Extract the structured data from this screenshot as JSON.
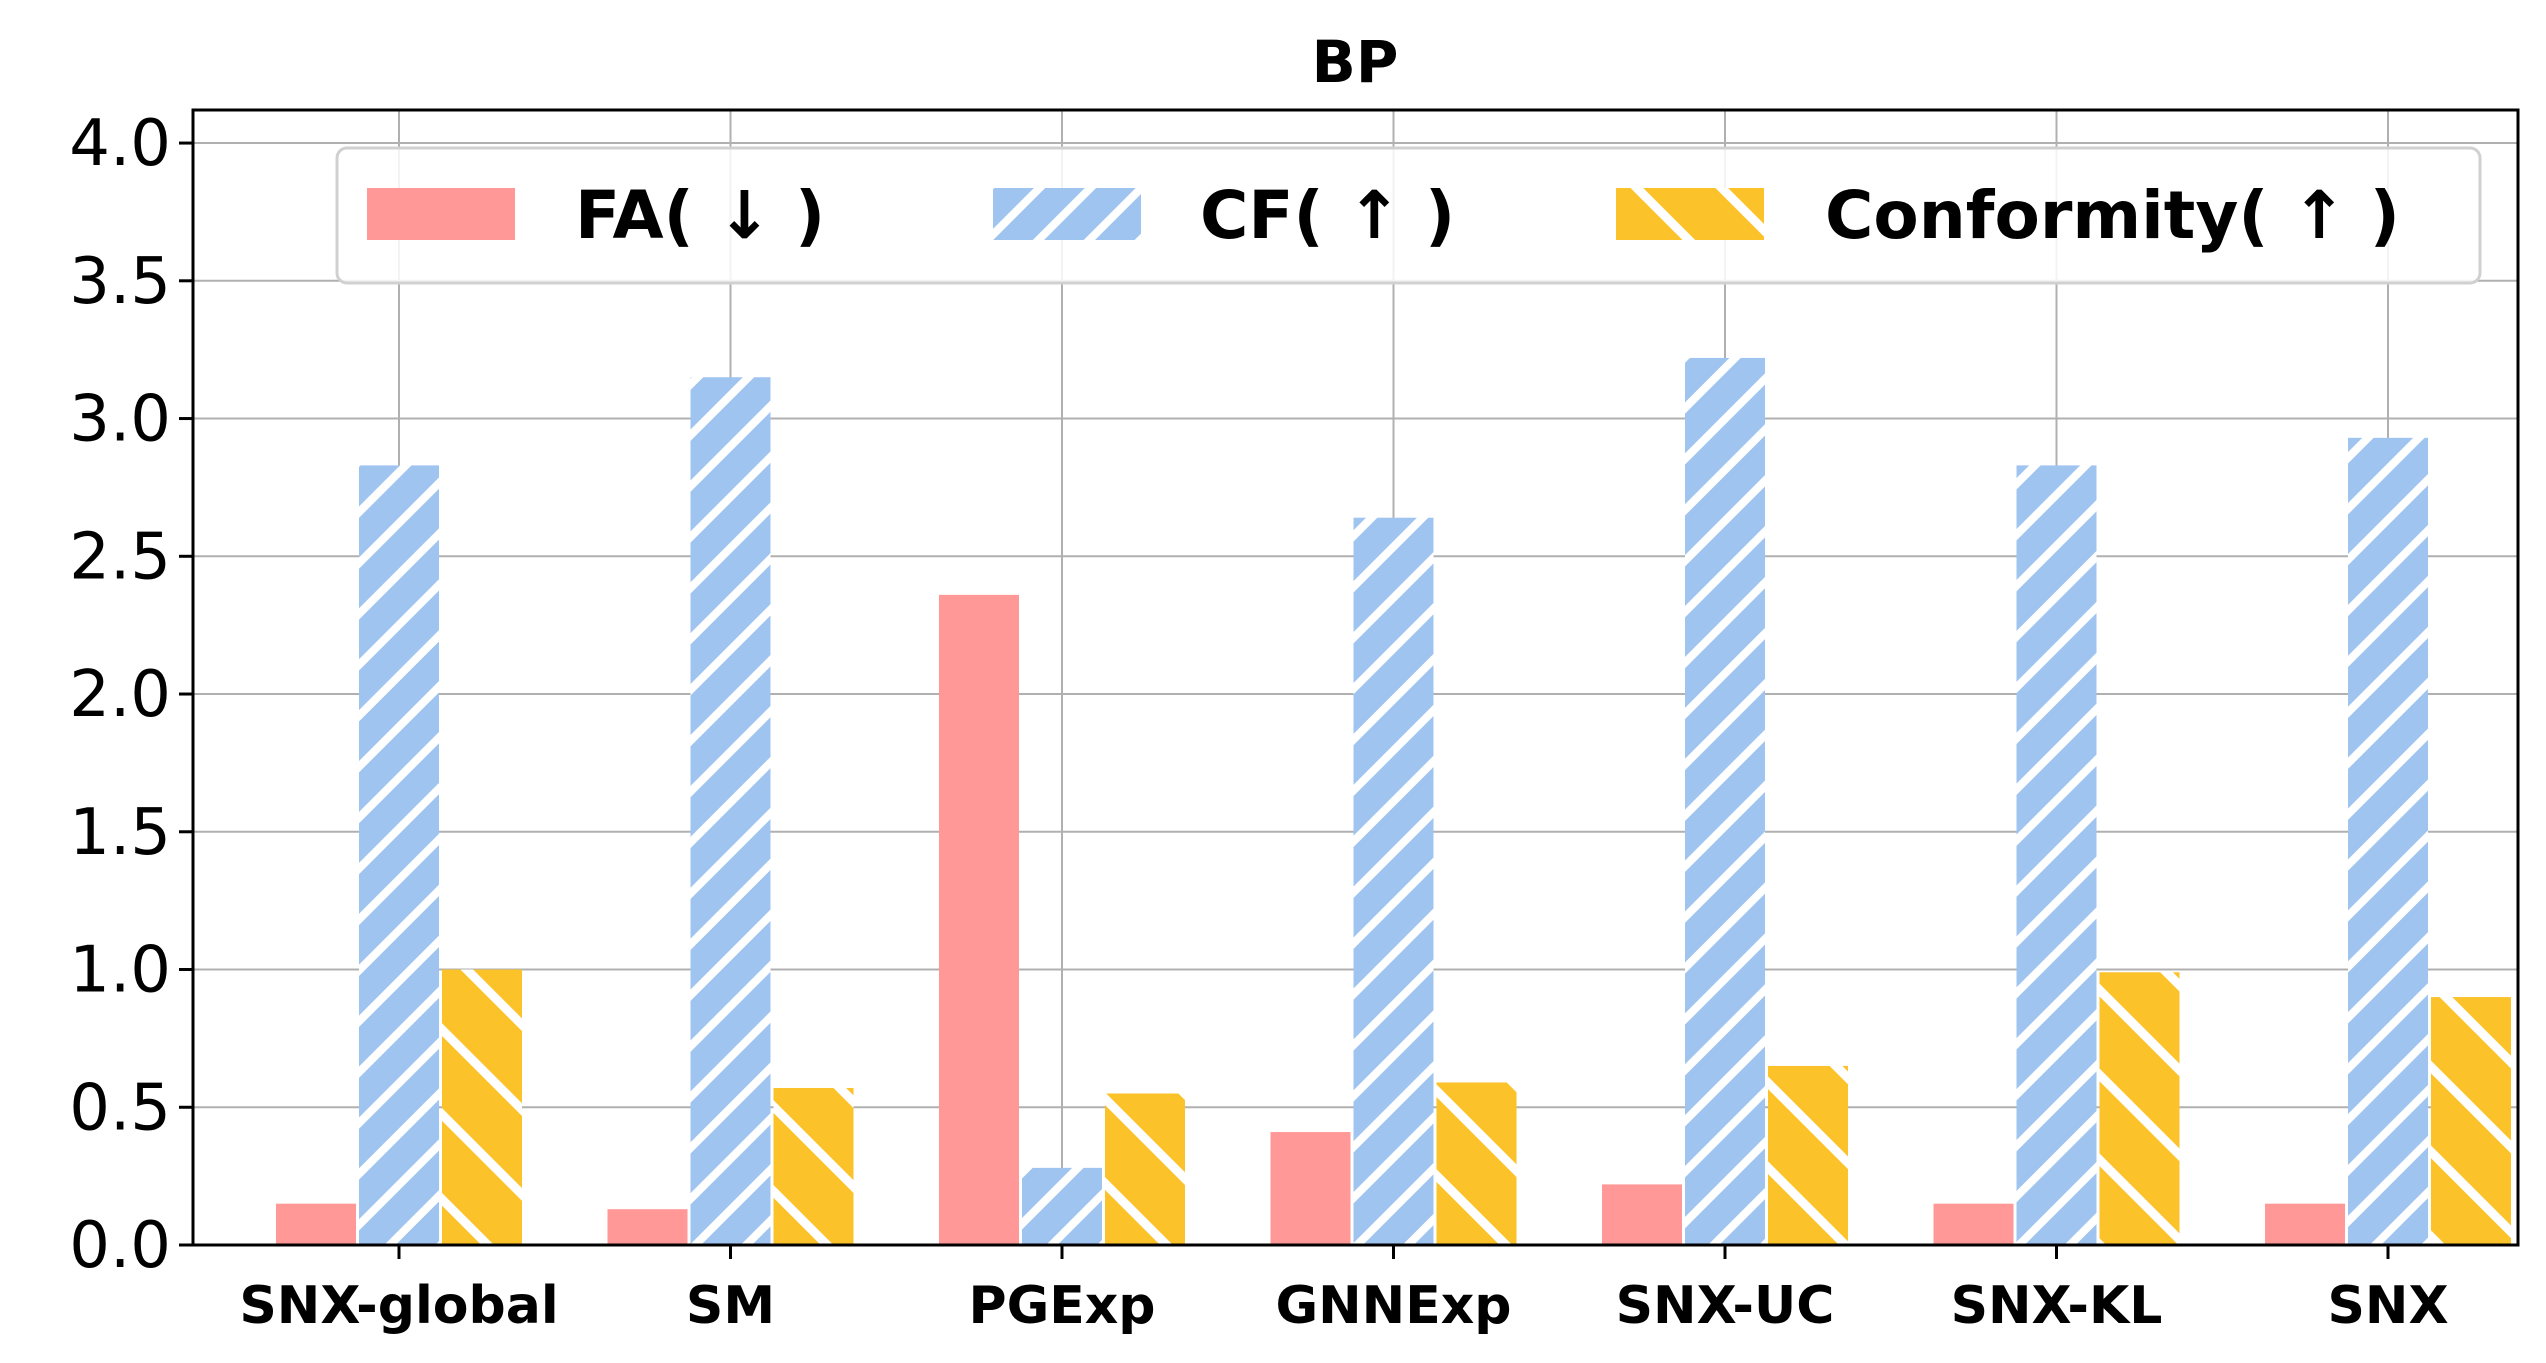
{
  "chart_data": {
    "type": "bar",
    "title": "BP",
    "xlabel": "",
    "ylabel": "",
    "ylim": [
      0,
      4.12
    ],
    "yticks": [
      "0.0",
      "0.5",
      "1.0",
      "1.5",
      "2.0",
      "2.5",
      "3.0",
      "3.5",
      "4.0"
    ],
    "grid": true,
    "legend_position": "top",
    "categories": [
      "SNX-global",
      "SM",
      "PGExp",
      "GNNExp",
      "SNX-UC",
      "SNX-KL",
      "SNX"
    ],
    "series": [
      {
        "name": "FA( ↓ )",
        "color": "#ff9896",
        "hatch": "none",
        "values": [
          0.15,
          0.13,
          2.36,
          0.41,
          0.22,
          0.15,
          0.15
        ]
      },
      {
        "name": "CF( ↑ )",
        "color": "#a0c4f0",
        "hatch": "forward",
        "values": [
          2.83,
          3.15,
          0.28,
          2.64,
          3.22,
          2.83,
          2.93
        ]
      },
      {
        "name": "Conformity( ↑ )",
        "color": "#fcc229",
        "hatch": "backward",
        "values": [
          1.0,
          0.57,
          0.55,
          0.59,
          0.65,
          0.99,
          0.9
        ]
      }
    ]
  }
}
